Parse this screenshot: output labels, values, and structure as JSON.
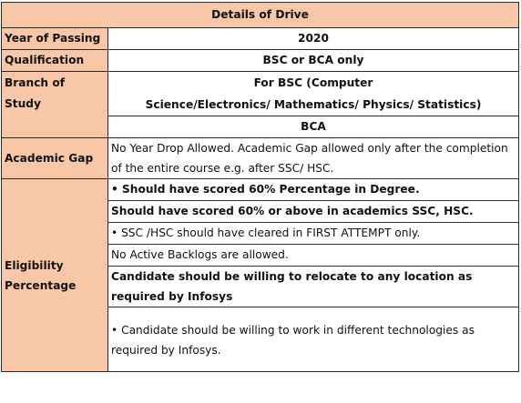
{
  "table": {
    "title": "Details of Drive",
    "rows": {
      "year_of_passing": {
        "label": "Year of Passing",
        "value": "2020"
      },
      "qualification": {
        "label": "Qualification",
        "value": "BSC or BCA only"
      },
      "branch": {
        "label": "Branch of Study",
        "value_line1": "For BSC (Computer",
        "value_line2": "Science/Electronics/ Mathematics/ Physics/ Statistics)",
        "value_line3": "BCA"
      },
      "academic_gap": {
        "label": "Academic Gap",
        "value": "No Year Drop Allowed. Academic Gap allowed only after the completion of the entire course e.g. after SSC/ HSC."
      },
      "eligibility": {
        "label_line1": "Eligibility",
        "label_line2": "Percentage",
        "items": [
          "•  Should have scored 60% Percentage in Degree.",
          "Should have scored 60% or above in academics SSC, HSC.",
          "• SSC /HSC should have cleared in FIRST ATTEMPT only.",
          "No Active Backlogs are allowed.",
          "Candidate should be willing to relocate to any location as required by Infosys",
          "• Candidate should be willing to work in different technologies as required by Infosys."
        ]
      }
    },
    "colors": {
      "header_bg": "#f8c7a7",
      "border": "#2b2b2b"
    }
  }
}
